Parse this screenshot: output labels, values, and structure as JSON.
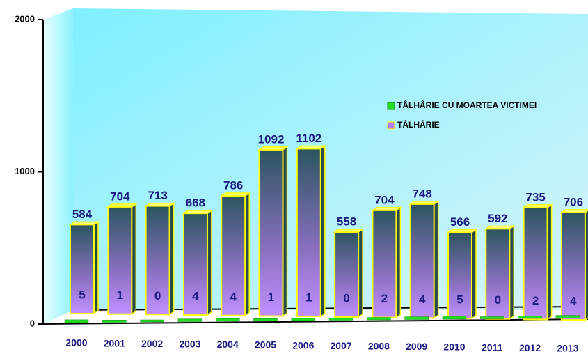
{
  "chart_data": {
    "type": "bar3d",
    "categories": [
      "2000",
      "2001",
      "2002",
      "2003",
      "2004",
      "2005",
      "2006",
      "2007",
      "2008",
      "2009",
      "2010",
      "2011",
      "2012",
      "2013"
    ],
    "series": [
      {
        "name": "TÂLHÂRIE CU MOARTEA VICTIMEI",
        "color": "#22dd22",
        "values": [
          5,
          1,
          0,
          4,
          4,
          1,
          1,
          0,
          2,
          4,
          5,
          0,
          2,
          4
        ]
      },
      {
        "name": "TÂLHÂRIE",
        "color": "#b080f0",
        "values": [
          584,
          704,
          713,
          668,
          786,
          1092,
          1102,
          558,
          704,
          748,
          566,
          592,
          735,
          706
        ]
      }
    ],
    "ylim": [
      0,
      2000
    ],
    "yticks": [
      0,
      1000,
      2000
    ],
    "legend": "right"
  }
}
